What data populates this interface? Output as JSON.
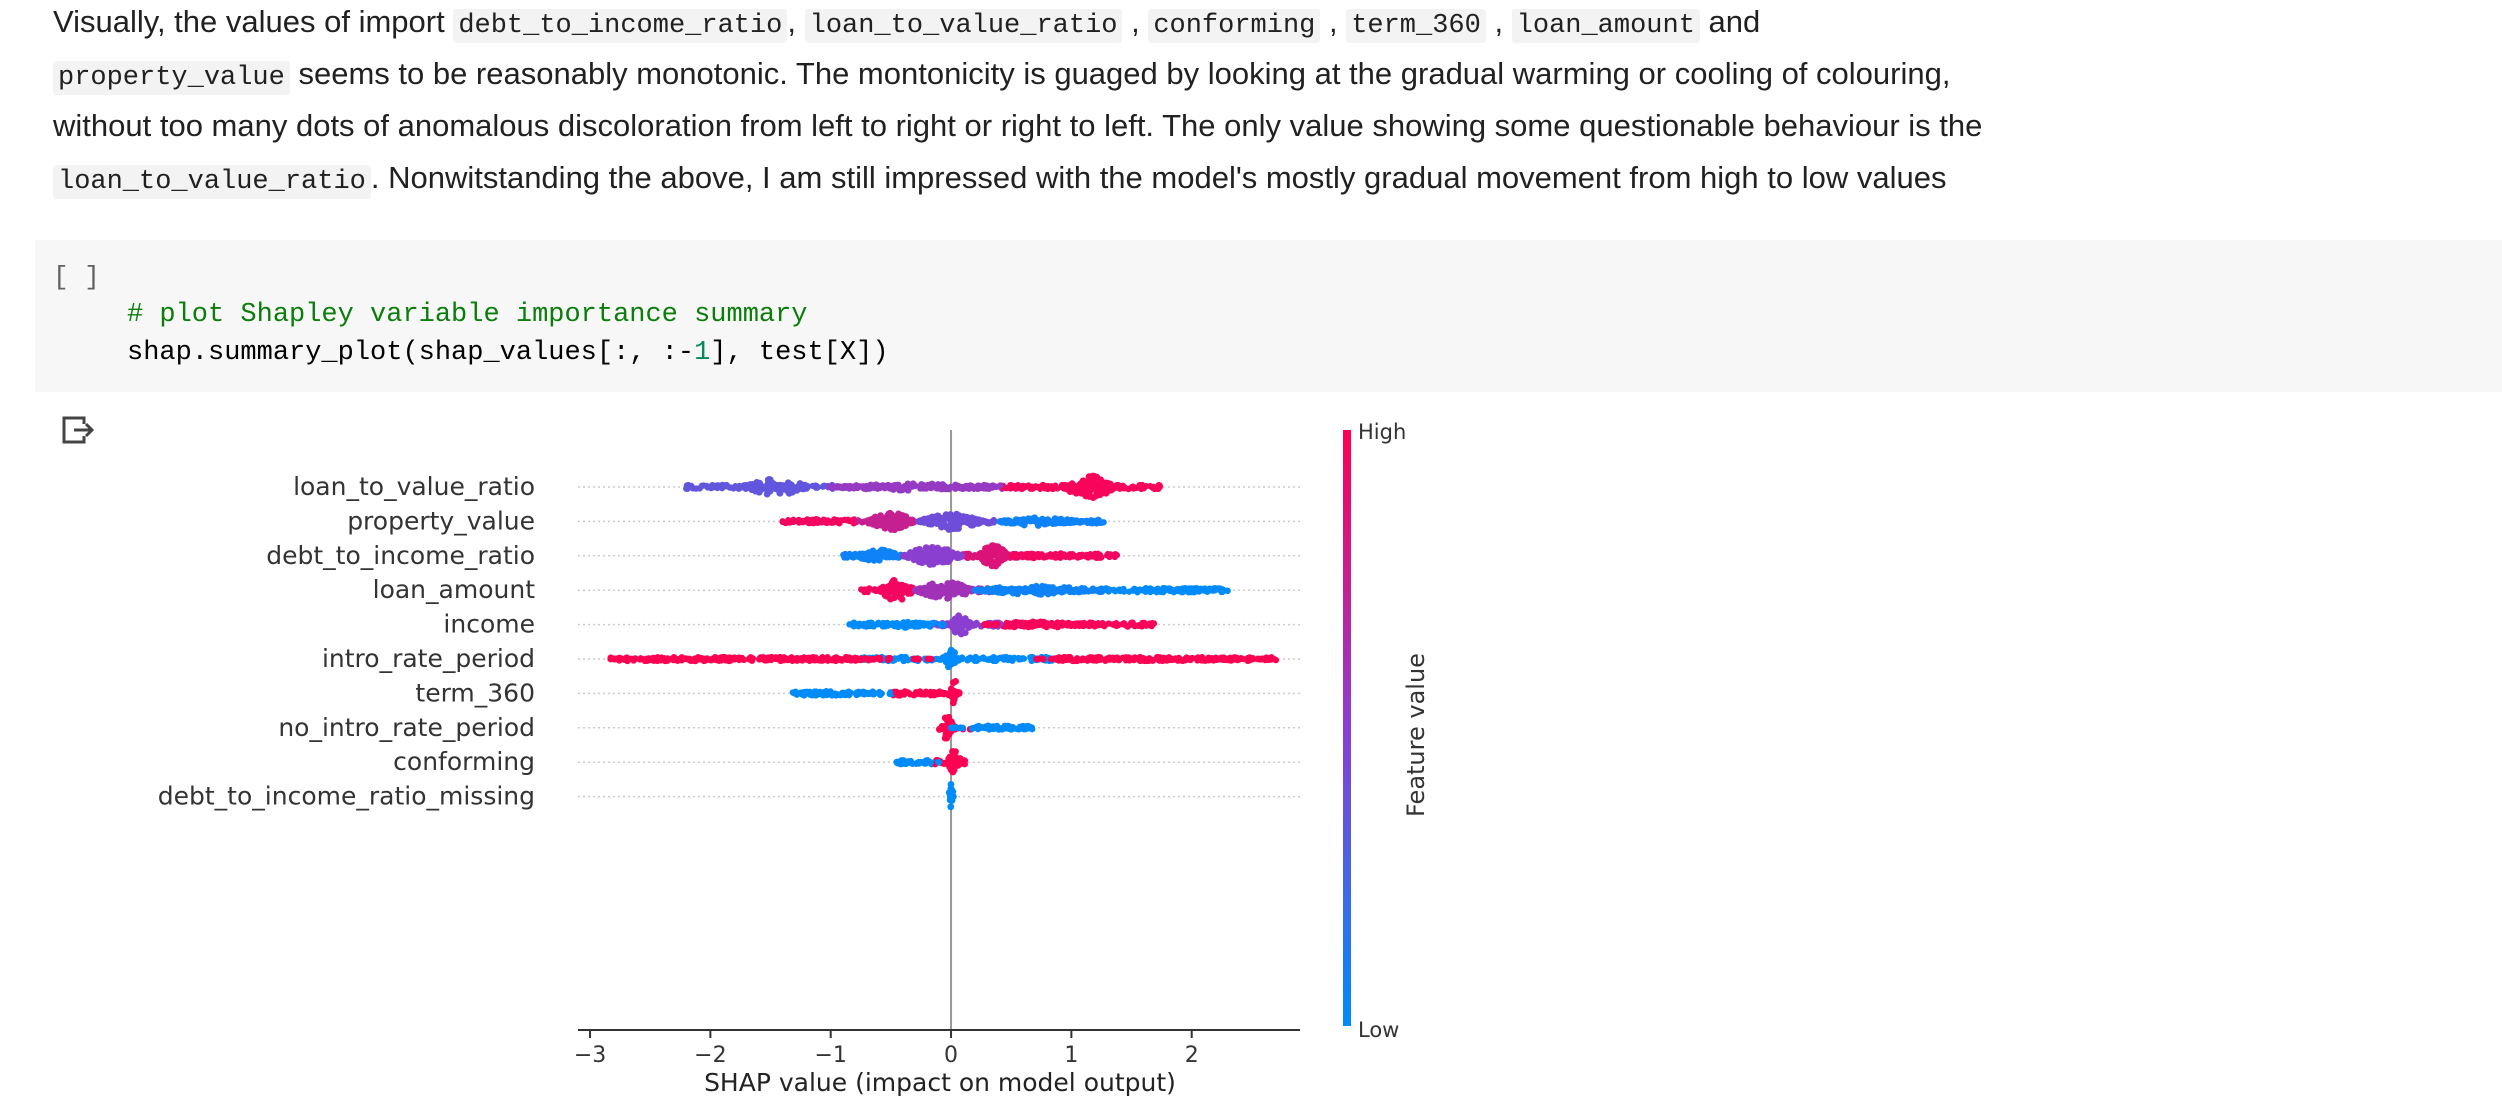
{
  "markdown": {
    "line1_text_a": "Visually, the values of import ",
    "code_debt_to_income_ratio": "debt_to_income_ratio",
    "sep_comma1": ", ",
    "code_loan_to_value_ratio": "loan_to_value_ratio",
    "sep_comma2": " , ",
    "code_conforming": "conforming",
    "sep_comma3": " , ",
    "code_term_360": "term_360",
    "sep_comma4": " , ",
    "code_loan_amount": "loan_amount",
    "line1_text_b": " and",
    "code_property_value": "property_value",
    "line2_text": " seems to be reasonably monotonic. The montonicity is guaged by looking at the gradual warming or cooling of colouring,",
    "line3_text": "without too many dots of anomalous discoloration from left to right or right to left. The only value showing some questionable behaviour is the",
    "code_loan_to_value_ratio_2": "loan_to_value_ratio",
    "line4_text": ". Nonwitstanding the above, I am still impressed with the model's mostly gradual movement from high to low values"
  },
  "code_cell": {
    "run_label": "[ ]",
    "comment": "# plot Shapley variable importance summary",
    "code_a": "shap.summary_plot(shap_values[:, :-",
    "code_num": "1",
    "code_b": "], test[X])"
  },
  "output": {
    "icon": "output-arrow-icon"
  },
  "chart_data": {
    "type": "scatter",
    "subtype": "shap_beeswarm",
    "features": [
      "loan_to_value_ratio",
      "property_value",
      "debt_to_income_ratio",
      "loan_amount",
      "income",
      "intro_rate_period",
      "term_360",
      "no_intro_rate_period",
      "conforming",
      "debt_to_income_ratio_missing"
    ],
    "xlabel": "SHAP value (impact on model output)",
    "xlim": [
      -3.1,
      2.9
    ],
    "xticks": [
      "−3",
      "−2",
      "−1",
      "0",
      "1",
      "2"
    ],
    "xtick_values": [
      -3,
      -2,
      -1,
      0,
      1,
      2
    ],
    "colorbar": {
      "label": "Feature value",
      "high": "High",
      "low": "Low"
    },
    "colors": {
      "high": "#ff0052",
      "mid": "#8a3fd0",
      "low": "#008bfb"
    },
    "series": [
      {
        "name": "loan_to_value_ratio",
        "range": [
          -2.2,
          1.75
        ],
        "blobs": [
          {
            "x": -1.45,
            "w": 0.55,
            "h": 0.55,
            "v": 0.35
          },
          {
            "x": -0.3,
            "w": 1.4,
            "h": 0.22,
            "v": 0.55
          },
          {
            "x": 1.15,
            "w": 0.45,
            "h": 0.75,
            "v": 0.97
          }
        ]
      },
      {
        "name": "property_value",
        "range": [
          -1.4,
          1.28
        ],
        "blobs": [
          {
            "x": -1.1,
            "w": 0.3,
            "h": 0.15,
            "v": 0.95
          },
          {
            "x": -0.5,
            "w": 0.4,
            "h": 0.6,
            "v": 0.75
          },
          {
            "x": 0.0,
            "w": 0.55,
            "h": 0.55,
            "v": 0.4
          },
          {
            "x": 0.75,
            "w": 0.7,
            "h": 0.3,
            "v": 0.05
          }
        ]
      },
      {
        "name": "debt_to_income_ratio",
        "range": [
          -0.9,
          1.38
        ],
        "blobs": [
          {
            "x": -0.6,
            "w": 0.4,
            "h": 0.4,
            "v": 0.05
          },
          {
            "x": -0.15,
            "w": 0.5,
            "h": 0.6,
            "v": 0.5
          },
          {
            "x": 0.35,
            "w": 0.25,
            "h": 0.75,
            "v": 0.85
          },
          {
            "x": 0.85,
            "w": 0.7,
            "h": 0.2,
            "v": 0.95
          }
        ]
      },
      {
        "name": "loan_amount",
        "range": [
          -0.75,
          2.3
        ],
        "blobs": [
          {
            "x": -0.45,
            "w": 0.3,
            "h": 0.7,
            "v": 0.95
          },
          {
            "x": -0.05,
            "w": 0.5,
            "h": 0.55,
            "v": 0.6
          },
          {
            "x": 0.7,
            "w": 1.0,
            "h": 0.3,
            "v": 0.05
          },
          {
            "x": 1.85,
            "w": 0.7,
            "h": 0.15,
            "v": 0.0
          }
        ]
      },
      {
        "name": "income",
        "range": [
          -0.85,
          1.7
        ],
        "blobs": [
          {
            "x": -0.4,
            "w": 0.8,
            "h": 0.2,
            "v": 0.0
          },
          {
            "x": 0.08,
            "w": 0.18,
            "h": 0.7,
            "v": 0.5
          },
          {
            "x": 0.75,
            "w": 1.0,
            "h": 0.2,
            "v": 0.97
          }
        ]
      },
      {
        "name": "intro_rate_period",
        "range": [
          -2.85,
          2.7
        ],
        "blobs": [
          {
            "x": -1.5,
            "w": 2.7,
            "h": 0.12,
            "v": 1.0
          },
          {
            "x": 0.0,
            "w": 0.1,
            "h": 0.8,
            "v": 0.0
          },
          {
            "x": 1.7,
            "w": 2.0,
            "h": 0.12,
            "v": 1.0
          }
        ]
      },
      {
        "name": "term_360",
        "range": [
          -1.32,
          0.05
        ],
        "blobs": [
          {
            "x": -1.0,
            "w": 0.65,
            "h": 0.15,
            "v": 0.0
          },
          {
            "x": 0.03,
            "w": 0.08,
            "h": 0.85,
            "v": 1.0
          }
        ]
      },
      {
        "name": "no_intro_rate_period",
        "range": [
          -0.1,
          0.7
        ],
        "blobs": [
          {
            "x": -0.03,
            "w": 0.1,
            "h": 0.85,
            "v": 1.0
          },
          {
            "x": 0.35,
            "w": 0.7,
            "h": 0.15,
            "v": 0.0
          }
        ]
      },
      {
        "name": "conforming",
        "range": [
          -0.45,
          0.12
        ],
        "blobs": [
          {
            "x": -0.3,
            "w": 0.4,
            "h": 0.15,
            "v": 0.0
          },
          {
            "x": 0.03,
            "w": 0.12,
            "h": 0.85,
            "v": 1.0
          }
        ]
      },
      {
        "name": "debt_to_income_ratio_missing",
        "range": [
          -0.01,
          0.01
        ],
        "blobs": [
          {
            "x": 0.0,
            "w": 0.04,
            "h": 0.85,
            "v": 0.0
          }
        ]
      }
    ]
  }
}
